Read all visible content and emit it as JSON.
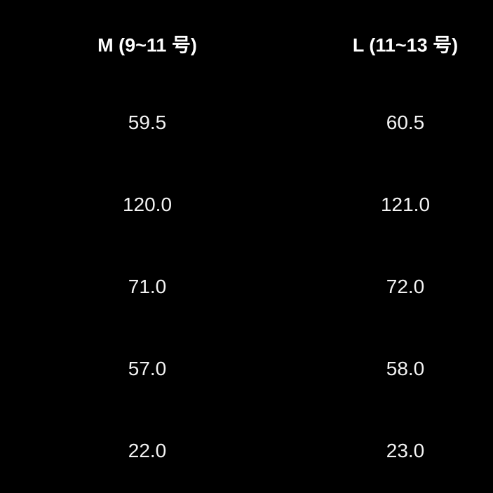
{
  "columns": [
    "M (9~11 号)",
    "L (11~13 号)"
  ],
  "rows": [
    [
      "59.5",
      "60.5"
    ],
    [
      "120.0",
      "121.0"
    ],
    [
      "71.0",
      "72.0"
    ],
    [
      "57.0",
      "58.0"
    ],
    [
      "22.0",
      "23.0"
    ]
  ],
  "colors": {
    "background": "#000000",
    "text": "#ffffff"
  }
}
